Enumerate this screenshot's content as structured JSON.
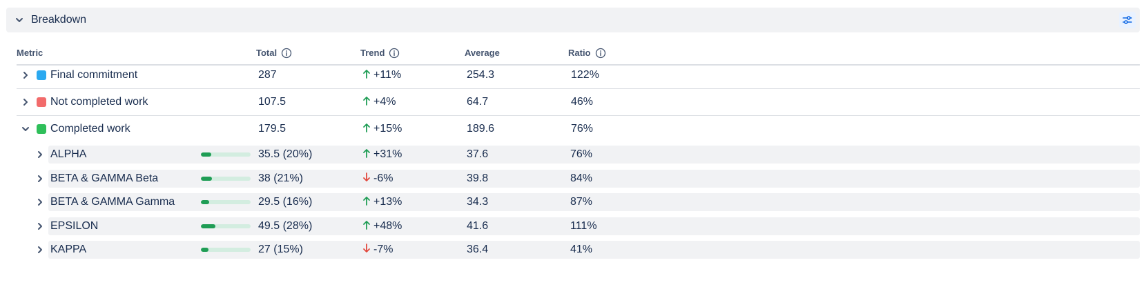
{
  "panel": {
    "title": "Breakdown"
  },
  "columns": {
    "metric": "Metric",
    "total": "Total",
    "trend": "Trend",
    "average": "Average",
    "ratio": "Ratio"
  },
  "colors": {
    "final_commitment": "#2ba9f0",
    "not_completed": "#f26b6b",
    "completed": "#2fbf5a",
    "trend_up": "#1f9d55",
    "trend_down": "#e2483d",
    "bar_fill": "#1f9d55",
    "bar_track": "#d3ede0"
  },
  "rows": [
    {
      "label": "Final commitment",
      "total": "287",
      "trend": "+11%",
      "trend_direction": "up",
      "average": "254.3",
      "ratio": "122%",
      "expanded": false,
      "swatch": "final_commitment"
    },
    {
      "label": "Not completed work",
      "total": "107.5",
      "trend": "+4%",
      "trend_direction": "up",
      "average": "64.7",
      "ratio": "46%",
      "expanded": false,
      "swatch": "not_completed"
    },
    {
      "label": "Completed work",
      "total": "179.5",
      "trend": "+15%",
      "trend_direction": "up",
      "average": "189.6",
      "ratio": "76%",
      "expanded": true,
      "swatch": "completed"
    }
  ],
  "subrows": [
    {
      "label": "ALPHA",
      "total": "35.5 (20%)",
      "share": 0.2,
      "trend": "+31%",
      "trend_direction": "up",
      "average": "37.6",
      "ratio": "76%"
    },
    {
      "label": "BETA & GAMMA Beta",
      "total": "38 (21%)",
      "share": 0.21,
      "trend": "-6%",
      "trend_direction": "down",
      "average": "39.8",
      "ratio": "84%"
    },
    {
      "label": "BETA & GAMMA Gamma",
      "total": "29.5 (16%)",
      "share": 0.16,
      "trend": "+13%",
      "trend_direction": "up",
      "average": "34.3",
      "ratio": "87%"
    },
    {
      "label": "EPSILON",
      "total": "49.5 (28%)",
      "share": 0.28,
      "trend": "+48%",
      "trend_direction": "up",
      "average": "41.6",
      "ratio": "111%"
    },
    {
      "label": "KAPPA",
      "total": "27 (15%)",
      "share": 0.15,
      "trend": "-7%",
      "trend_direction": "down",
      "average": "36.4",
      "ratio": "41%"
    }
  ]
}
